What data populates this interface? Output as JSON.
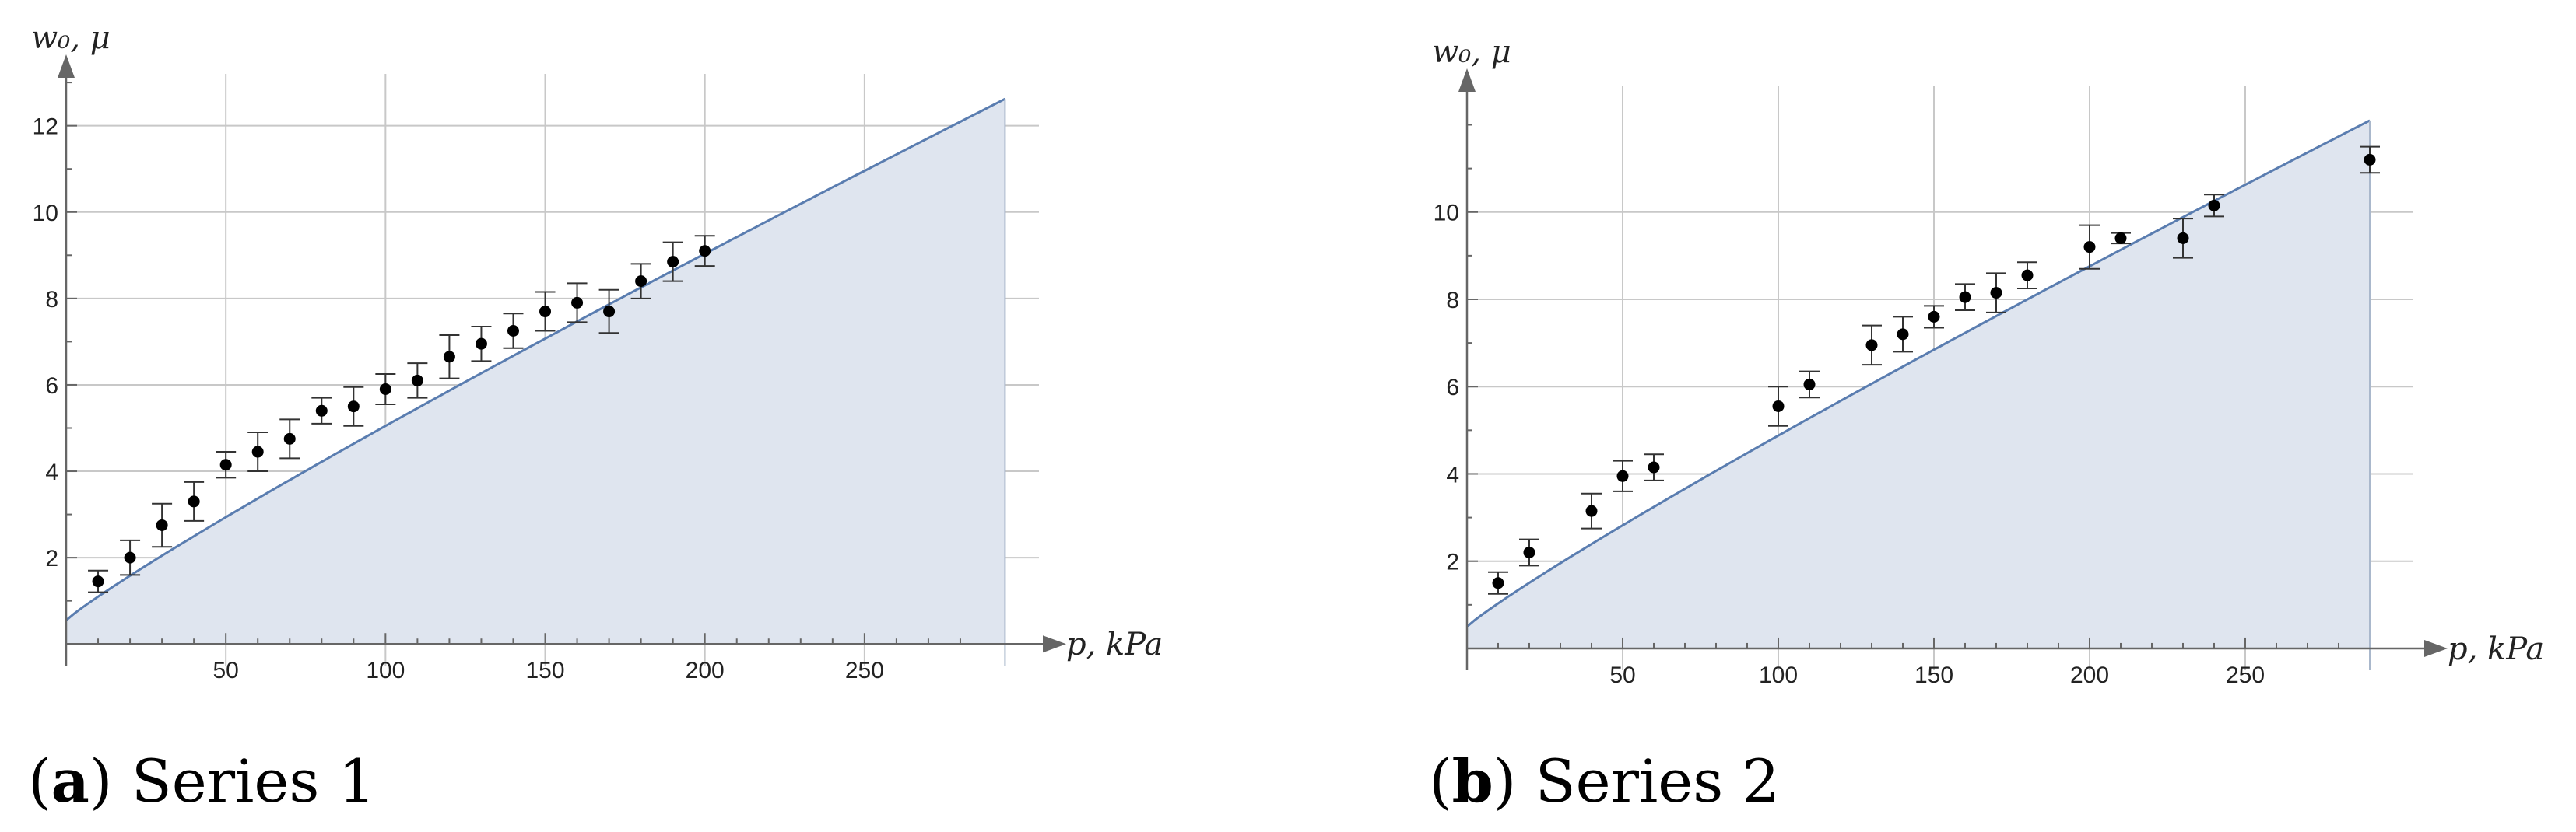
{
  "chart_data": [
    {
      "type": "scatter",
      "panel_letter": "a",
      "caption": "Series 1",
      "xlabel": "p, kPa",
      "ylabel": "w₀, μ",
      "xlim": [
        0,
        290
      ],
      "ylim": [
        -0.5,
        13.2
      ],
      "xticks": [
        50,
        100,
        150,
        200,
        250
      ],
      "yticks": [
        2,
        4,
        6,
        8,
        10,
        12
      ],
      "grid": true,
      "model_curve": {
        "x": [
          0,
          294
        ],
        "y": [
          0.55,
          12.62
        ],
        "exponent": 0.915
      },
      "series": [
        {
          "x": [
            10,
            20,
            30,
            40,
            50,
            60,
            70,
            80,
            90,
            100,
            110,
            120,
            130,
            140,
            150,
            160,
            170,
            180,
            190,
            200
          ],
          "y": [
            1.45,
            2.0,
            2.75,
            3.3,
            4.15,
            4.45,
            4.75,
            5.4,
            5.5,
            5.9,
            6.1,
            6.65,
            6.95,
            7.25,
            7.7,
            7.9,
            7.7,
            8.4,
            8.85,
            9.1
          ],
          "err": [
            0.25,
            0.4,
            0.5,
            0.45,
            0.3,
            0.45,
            0.45,
            0.3,
            0.45,
            0.35,
            0.4,
            0.5,
            0.4,
            0.4,
            0.45,
            0.45,
            0.5,
            0.4,
            0.45,
            0.35
          ]
        }
      ],
      "colors": {
        "curve": "#5a7db0",
        "fill": "#dfe5ef",
        "points": "#000000",
        "grid": "#c8c8c8",
        "axis": "#666666"
      }
    },
    {
      "type": "scatter",
      "panel_letter": "b",
      "caption": "Series 2",
      "xlabel": "p, kPa",
      "ylabel": "w₀, μ",
      "xlim": [
        0,
        290
      ],
      "ylim": [
        -0.5,
        12.9
      ],
      "xticks": [
        50,
        100,
        150,
        200,
        250
      ],
      "yticks": [
        2,
        4,
        6,
        8,
        10
      ],
      "grid": true,
      "model_curve": {
        "x": [
          0,
          290
        ],
        "y": [
          0.5,
          12.1
        ],
        "exponent": 0.915
      },
      "series": [
        {
          "x": [
            10,
            20,
            40,
            50,
            60,
            100,
            110,
            130,
            140,
            150,
            160,
            170,
            180,
            200,
            210,
            230,
            240,
            290
          ],
          "y": [
            1.5,
            2.2,
            3.15,
            3.95,
            4.15,
            5.55,
            6.05,
            6.95,
            7.2,
            7.6,
            8.05,
            8.15,
            8.55,
            9.2,
            9.4,
            9.4,
            10.15,
            11.2
          ],
          "err": [
            0.25,
            0.3,
            0.4,
            0.35,
            0.3,
            0.45,
            0.3,
            0.45,
            0.4,
            0.25,
            0.3,
            0.45,
            0.3,
            0.5,
            0.12,
            0.45,
            0.25,
            0.3
          ]
        }
      ],
      "colors": {
        "curve": "#5a7db0",
        "fill": "#dfe5ef",
        "points": "#000000",
        "grid": "#c8c8c8",
        "axis": "#666666"
      }
    }
  ]
}
